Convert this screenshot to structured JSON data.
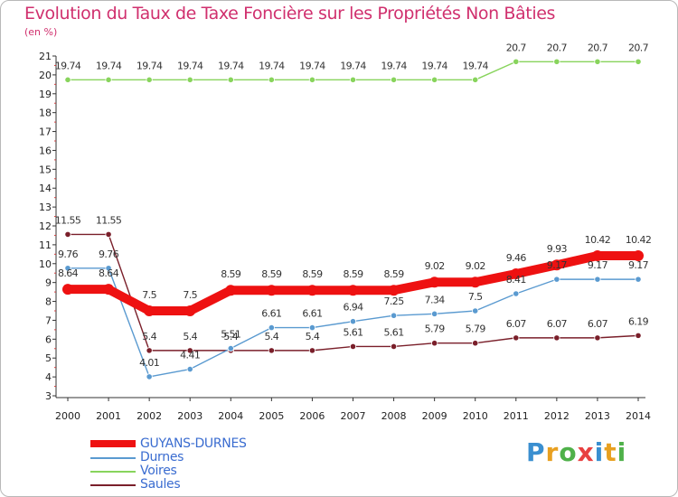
{
  "title": "Evolution du Taux de Taxe Foncière sur les Propriétés Non Bâties",
  "subtitle": "(en %)",
  "logo": {
    "text": "Proxiti",
    "colors": [
      "#3a8fd0",
      "#e8a020",
      "#4fb14a",
      "#e84040",
      "#3a8fd0",
      "#e8a020",
      "#4fb14a"
    ]
  },
  "chart_data": {
    "type": "line",
    "title": "Evolution du Taux de Taxe Foncière sur les Propriétés Non Bâties",
    "ylabel": "(en %)",
    "xlabel": "",
    "ylim": [
      3,
      21
    ],
    "yticks": [
      3,
      4,
      5,
      6,
      7,
      8,
      9,
      10,
      11,
      12,
      13,
      14,
      15,
      16,
      17,
      18,
      19,
      20,
      21
    ],
    "categories": [
      "2000",
      "2001",
      "2002",
      "2003",
      "2004",
      "2005",
      "2006",
      "2007",
      "2008",
      "2009",
      "2010",
      "2011",
      "2012",
      "2013",
      "2014"
    ],
    "series": [
      {
        "name": "Voires",
        "color": "#88d45c",
        "values": [
          19.74,
          19.74,
          19.74,
          19.74,
          19.74,
          19.74,
          19.74,
          19.74,
          19.74,
          19.74,
          19.74,
          20.7,
          20.7,
          20.7,
          20.7
        ],
        "labels": [
          "19.74",
          "19.74",
          "19.74",
          "19.74",
          "19.74",
          "19.74",
          "19.74",
          "19.74",
          "19.74",
          "19.74",
          "19.74",
          "20.7",
          "20.7",
          "20.7",
          "20.7"
        ]
      },
      {
        "name": "Saules",
        "color": "#7a1f2a",
        "values": [
          11.55,
          11.55,
          5.4,
          5.4,
          5.4,
          5.4,
          5.4,
          5.61,
          5.61,
          5.79,
          5.79,
          6.07,
          6.07,
          6.07,
          6.19
        ],
        "labels": [
          "11.55",
          "11.55",
          "5.4",
          "5.4",
          "5.4",
          "5.4",
          "5.4",
          "5.61",
          "5.61",
          "5.79",
          "5.79",
          "6.07",
          "6.07",
          "6.07",
          "6.19"
        ]
      },
      {
        "name": "Durnes",
        "color": "#5a9ad0",
        "values": [
          9.76,
          9.76,
          4.01,
          4.41,
          5.51,
          6.61,
          6.61,
          6.94,
          7.25,
          7.34,
          7.5,
          8.41,
          9.17,
          9.17,
          9.17
        ],
        "labels": [
          "9.76",
          "9.76",
          "4.01",
          "4.41",
          "5.51",
          "6.61",
          "6.61",
          "6.94",
          "7.25",
          "7.34",
          "7.5",
          "8.41",
          "9.17",
          "9.17",
          "9.17"
        ]
      },
      {
        "name": "GUYANS-DURNES",
        "color": "#ee1111",
        "values": [
          8.64,
          8.64,
          7.5,
          7.5,
          8.59,
          8.59,
          8.59,
          8.59,
          8.59,
          9.02,
          9.02,
          9.46,
          9.93,
          10.42,
          10.42
        ],
        "labels": [
          "8.64",
          "8.64",
          "7.5",
          "7.5",
          "8.59",
          "8.59",
          "8.59",
          "8.59",
          "8.59",
          "9.02",
          "9.02",
          "9.46",
          "9.93",
          "10.42",
          "10.42"
        ]
      }
    ],
    "legend": [
      "GUYANS-DURNES",
      "Durnes",
      "Voires",
      "Saules"
    ],
    "legend_position": "bottom-left",
    "grid": false
  }
}
